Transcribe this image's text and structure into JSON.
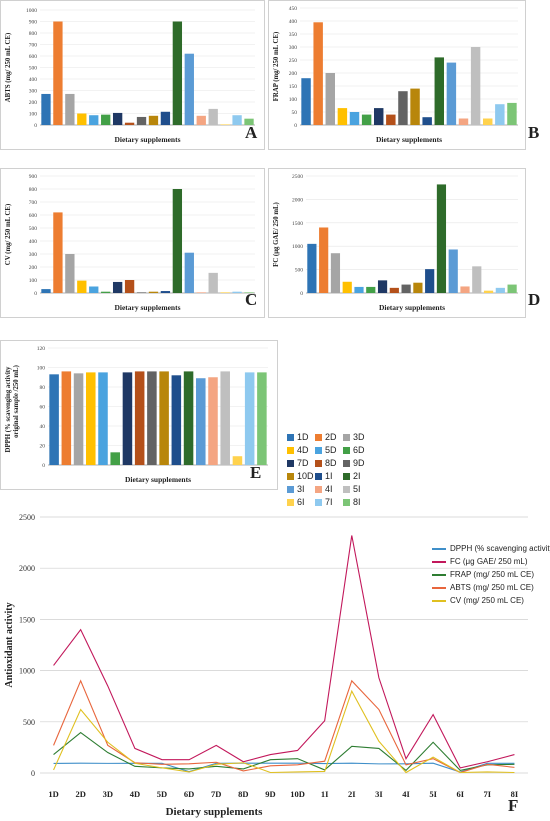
{
  "chart_data": [
    {
      "panel": "A",
      "type": "bar",
      "ylabel": "ABTS (mg/ 250 mL CE)",
      "xlabel": "Dietary supplements",
      "ylim": [
        0,
        1000
      ],
      "yticks": [
        0,
        100,
        200,
        300,
        400,
        500,
        600,
        700,
        800,
        900,
        1000
      ],
      "values": [
        270,
        900,
        270,
        100,
        85,
        90,
        105,
        20,
        70,
        80,
        115,
        900,
        620,
        80,
        140,
        5,
        85,
        55
      ]
    },
    {
      "panel": "B",
      "type": "bar",
      "ylabel": "FRAP (mg/ 250 mL CE)",
      "xlabel": "Dietary supplements",
      "ylim": [
        0,
        450
      ],
      "yticks": [
        0,
        50,
        100,
        150,
        200,
        250,
        300,
        350,
        400,
        450
      ],
      "values": [
        180,
        395,
        200,
        65,
        50,
        40,
        65,
        40,
        130,
        140,
        30,
        260,
        240,
        25,
        300,
        25,
        80,
        85
      ]
    },
    {
      "panel": "C",
      "type": "bar",
      "ylabel": "CV (mg/ 250 mL CE)",
      "xlabel": "Dietary supplements",
      "ylim": [
        0,
        900
      ],
      "yticks": [
        0,
        100,
        200,
        300,
        400,
        500,
        600,
        700,
        800,
        900
      ],
      "values": [
        30,
        620,
        300,
        95,
        50,
        10,
        85,
        100,
        5,
        10,
        15,
        800,
        310,
        5,
        155,
        5,
        10,
        5
      ]
    },
    {
      "panel": "D",
      "type": "bar",
      "ylabel": "FC (μg GAE/ 250 mL)",
      "xlabel": "Dietary supplements",
      "ylim": [
        0,
        2500
      ],
      "yticks": [
        0,
        500,
        1000,
        1500,
        2000,
        2500
      ],
      "values": [
        1050,
        1400,
        850,
        240,
        130,
        130,
        270,
        110,
        180,
        220,
        510,
        2320,
        930,
        140,
        570,
        50,
        110,
        180
      ]
    },
    {
      "panel": "E",
      "type": "bar",
      "ylabel": "DPPH (% scavenging activity original sample /250 mL)",
      "xlabel": "Dietary supplements",
      "ylim": [
        0,
        120
      ],
      "yticks": [
        0,
        20,
        40,
        60,
        80,
        100,
        120
      ],
      "values": [
        93,
        96,
        94,
        95,
        95,
        13,
        95,
        96,
        96,
        96,
        92,
        96,
        89,
        90,
        96,
        9,
        95,
        95
      ]
    },
    {
      "panel": "F",
      "type": "line",
      "ylabel": "Antioxidant activity",
      "xlabel": "Dietary supplements",
      "ylim": [
        0,
        2500
      ],
      "yticks": [
        0,
        500,
        1000,
        1500,
        2000,
        2500
      ],
      "categories": [
        "1D",
        "2D",
        "3D",
        "4D",
        "5D",
        "6D",
        "7D",
        "8D",
        "9D",
        "10D",
        "1I",
        "2I",
        "3I",
        "4I",
        "5I",
        "6I",
        "7I",
        "8I"
      ],
      "series": [
        {
          "name": "DPPH (% scavenging activity)",
          "color": "#3f8fc9",
          "values": [
            93,
            96,
            94,
            95,
            95,
            13,
            95,
            96,
            96,
            96,
            92,
            96,
            89,
            90,
            96,
            9,
            95,
            95
          ]
        },
        {
          "name": "FC (μg GAE/ 250 mL)",
          "color": "#c2185b",
          "values": [
            1050,
            1400,
            850,
            240,
            130,
            130,
            270,
            110,
            180,
            220,
            510,
            2320,
            930,
            140,
            570,
            50,
            110,
            180
          ]
        },
        {
          "name": "FRAP (mg/ 250 mL CE)",
          "color": "#2e7d32",
          "values": [
            180,
            395,
            200,
            65,
            50,
            40,
            65,
            40,
            130,
            140,
            30,
            260,
            240,
            25,
            300,
            25,
            80,
            85
          ]
        },
        {
          "name": "ABTS (mg/ 250 mL CE)",
          "color": "#e8663d",
          "values": [
            270,
            900,
            270,
            100,
            85,
            90,
            105,
            20,
            70,
            80,
            115,
            900,
            620,
            80,
            140,
            5,
            85,
            55
          ]
        },
        {
          "name": "CV (mg/ 250 mL CE)",
          "color": "#e0c020",
          "values": [
            30,
            620,
            300,
            95,
            50,
            10,
            85,
            100,
            5,
            10,
            15,
            800,
            310,
            5,
            155,
            5,
            10,
            5
          ]
        }
      ]
    }
  ],
  "legend": {
    "items": [
      {
        "label": "1D",
        "color": "#2e74b5"
      },
      {
        "label": "2D",
        "color": "#ed7d31"
      },
      {
        "label": "3D",
        "color": "#a5a5a5"
      },
      {
        "label": "4D",
        "color": "#ffc000"
      },
      {
        "label": "5D",
        "color": "#4aa3df"
      },
      {
        "label": "6D",
        "color": "#43a047"
      },
      {
        "label": "7D",
        "color": "#1f3864"
      },
      {
        "label": "8D",
        "color": "#b4501a"
      },
      {
        "label": "9D",
        "color": "#636363"
      },
      {
        "label": "10D",
        "color": "#b8860b"
      },
      {
        "label": "1I",
        "color": "#1f4e8c"
      },
      {
        "label": "2I",
        "color": "#2e6b2a"
      },
      {
        "label": "3I",
        "color": "#5b9bd5"
      },
      {
        "label": "4I",
        "color": "#f4a582"
      },
      {
        "label": "5I",
        "color": "#bfbfbf"
      },
      {
        "label": "6I",
        "color": "#ffd24d"
      },
      {
        "label": "7I",
        "color": "#8ec9ef"
      },
      {
        "label": "8I",
        "color": "#7cc576"
      }
    ]
  },
  "labels": {
    "A": "A",
    "B": "B",
    "C": "C",
    "D": "D",
    "E": "E",
    "F": "F"
  }
}
